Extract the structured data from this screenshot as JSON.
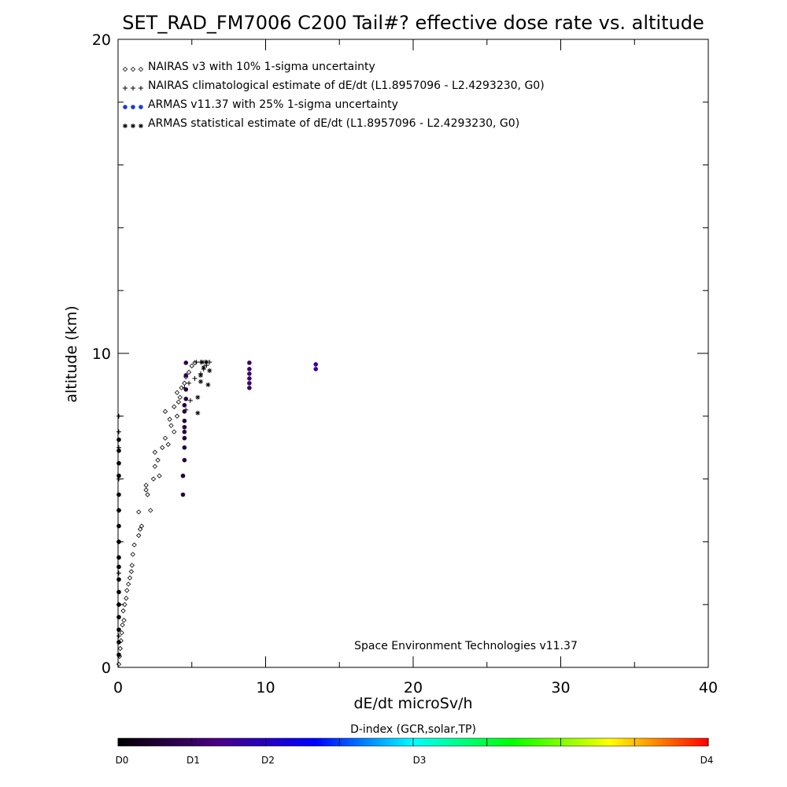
{
  "chart_data": {
    "type": "scatter",
    "title": "SET_RAD_FM7006  C200 Tail#? effective dose rate vs. altitude",
    "xlabel": "dE/dt microSv/h",
    "ylabel": "altitude (km)",
    "xlim": [
      0,
      40
    ],
    "ylim": [
      0,
      20
    ],
    "x_ticks": [
      0,
      10,
      20,
      30,
      40
    ],
    "y_ticks": [
      0,
      10,
      20
    ],
    "x_tick_labels": [
      "0",
      "10",
      "20",
      "30",
      "40"
    ],
    "y_tick_labels": [
      "0",
      "10",
      "20"
    ],
    "grid": false,
    "legend_placement": "top-left",
    "legend": [
      {
        "symbol": "◇◇◇",
        "label": "NAIRAS v3 with 10% 1-sigma uncertainty"
      },
      {
        "symbol": "+++",
        "label": "NAIRAS climatological estimate of dE/dt (L1.8957096 - L2.4293230, G0)"
      },
      {
        "symbol": "●●●",
        "label": "ARMAS v11.37 with 25% 1-sigma uncertainty"
      },
      {
        "symbol": "✳✳✳",
        "label": "ARMAS statistical estimate of dE/dt (L1.8957096 - L2.4293230, G0)"
      }
    ],
    "annotation": "Space Environment Technologies v11.37",
    "colorbar": {
      "title": "D-index (GCR,solar,TP)",
      "labels": [
        "D0",
        "D1",
        "D2",
        "D3",
        "D4"
      ],
      "label_positions": [
        0,
        0.1166,
        0.2432,
        0.5,
        1.0
      ],
      "colors": [
        "#000000",
        "#4b0082",
        "#0000ff",
        "#00ffff",
        "#00ff00",
        "#ffff00",
        "#ff0000"
      ]
    },
    "series": [
      {
        "key": "nairas",
        "marker": "diamond",
        "points": [
          [
            0.05,
            0.1
          ],
          [
            0.1,
            0.35
          ],
          [
            0.15,
            0.6
          ],
          [
            0.2,
            0.85
          ],
          [
            0.25,
            1.1
          ],
          [
            0.3,
            1.35
          ],
          [
            0.4,
            1.5
          ],
          [
            0.35,
            1.8
          ],
          [
            0.45,
            2.0
          ],
          [
            0.55,
            2.2
          ],
          [
            0.6,
            2.45
          ],
          [
            0.7,
            2.65
          ],
          [
            0.8,
            2.85
          ],
          [
            0.9,
            3.05
          ],
          [
            0.95,
            3.25
          ],
          [
            1.0,
            3.6
          ],
          [
            1.1,
            3.9
          ],
          [
            1.4,
            4.2
          ],
          [
            1.5,
            4.4
          ],
          [
            1.6,
            4.5
          ],
          [
            1.4,
            4.95
          ],
          [
            2.2,
            5.0
          ],
          [
            2.0,
            5.5
          ],
          [
            1.9,
            5.65
          ],
          [
            1.9,
            5.8
          ],
          [
            2.4,
            6.0
          ],
          [
            2.8,
            6.1
          ],
          [
            2.5,
            6.4
          ],
          [
            2.7,
            6.6
          ],
          [
            2.5,
            6.85
          ],
          [
            3.0,
            7.0
          ],
          [
            3.4,
            7.1
          ],
          [
            3.2,
            7.3
          ],
          [
            3.8,
            7.5
          ],
          [
            3.6,
            7.7
          ],
          [
            3.5,
            7.9
          ],
          [
            4.0,
            8.0
          ],
          [
            3.2,
            8.15
          ],
          [
            3.8,
            8.3
          ],
          [
            4.1,
            8.45
          ],
          [
            4.2,
            8.6
          ],
          [
            4.0,
            8.75
          ],
          [
            4.3,
            8.9
          ],
          [
            4.5,
            9.05
          ],
          [
            4.6,
            9.25
          ],
          [
            4.8,
            9.4
          ],
          [
            5.0,
            9.6
          ],
          [
            5.2,
            9.7
          ]
        ]
      },
      {
        "key": "nairas_clim",
        "marker": "plus",
        "points": [
          [
            0.0,
            1.0
          ],
          [
            0.0,
            2.0
          ],
          [
            0.0,
            3.0
          ],
          [
            0.0,
            4.0
          ],
          [
            0.0,
            5.0
          ],
          [
            0.0,
            6.0
          ],
          [
            0.0,
            7.0
          ],
          [
            0.0,
            7.5
          ],
          [
            0.0,
            8.0
          ],
          [
            4.6,
            8.2
          ],
          [
            4.9,
            8.5
          ],
          [
            4.5,
            8.9
          ],
          [
            4.8,
            9.05
          ],
          [
            5.2,
            9.2
          ],
          [
            5.6,
            9.35
          ],
          [
            5.8,
            9.5
          ],
          [
            6.0,
            9.62
          ],
          [
            6.2,
            9.72
          ],
          [
            5.9,
            9.72
          ],
          [
            5.6,
            9.72
          ],
          [
            5.3,
            9.72
          ]
        ]
      },
      {
        "key": "armas",
        "marker": "dot",
        "points": [
          [
            0.0,
            0.4
          ],
          [
            0.0,
            0.8
          ],
          [
            0.0,
            1.2
          ],
          [
            0.0,
            1.6
          ],
          [
            0.0,
            2.0
          ],
          [
            0.0,
            2.4
          ],
          [
            0.0,
            2.8
          ],
          [
            0.0,
            3.2
          ],
          [
            0.0,
            3.5
          ],
          [
            0.0,
            4.0
          ],
          [
            0.0,
            4.5
          ],
          [
            0.0,
            5.0
          ],
          [
            0.0,
            5.5
          ],
          [
            0.0,
            6.1
          ],
          [
            0.0,
            6.5
          ],
          [
            0.0,
            6.9
          ],
          [
            0.0,
            7.25
          ],
          [
            4.4,
            5.5
          ],
          [
            4.4,
            6.1
          ],
          [
            4.5,
            6.6
          ],
          [
            4.5,
            7.0
          ],
          [
            4.5,
            7.3
          ],
          [
            4.5,
            7.5
          ],
          [
            4.5,
            7.65
          ],
          [
            4.5,
            7.85
          ],
          [
            4.5,
            8.15
          ],
          [
            4.5,
            8.35
          ],
          [
            4.6,
            8.55
          ],
          [
            4.6,
            8.85
          ],
          [
            4.6,
            9.3
          ],
          [
            4.6,
            9.7
          ],
          [
            8.9,
            8.9
          ],
          [
            8.9,
            9.05
          ],
          [
            8.9,
            9.2
          ],
          [
            8.9,
            9.35
          ],
          [
            8.9,
            9.5
          ],
          [
            8.9,
            9.7
          ],
          [
            13.4,
            9.5
          ],
          [
            13.4,
            9.65
          ]
        ],
        "levels": [
          0,
          0,
          0,
          0,
          0,
          0,
          0,
          0,
          0,
          0,
          0,
          0,
          0,
          0,
          0,
          0,
          0,
          0.08,
          0.08,
          0.08,
          0.08,
          0.08,
          0.08,
          0.08,
          0.08,
          0.08,
          0.08,
          0.08,
          0.08,
          0.1,
          0.1,
          0.13,
          0.13,
          0.13,
          0.13,
          0.13,
          0.13,
          0.2,
          0.2
        ]
      },
      {
        "key": "armas_stat",
        "marker": "star",
        "points": [
          [
            5.4,
            8.1
          ],
          [
            5.4,
            8.6
          ],
          [
            5.6,
            9.1
          ],
          [
            5.6,
            9.3
          ],
          [
            6.1,
            9.0
          ],
          [
            6.2,
            9.45
          ],
          [
            5.8,
            9.55
          ],
          [
            6.0,
            9.72
          ],
          [
            5.7,
            9.72
          ]
        ]
      }
    ]
  }
}
